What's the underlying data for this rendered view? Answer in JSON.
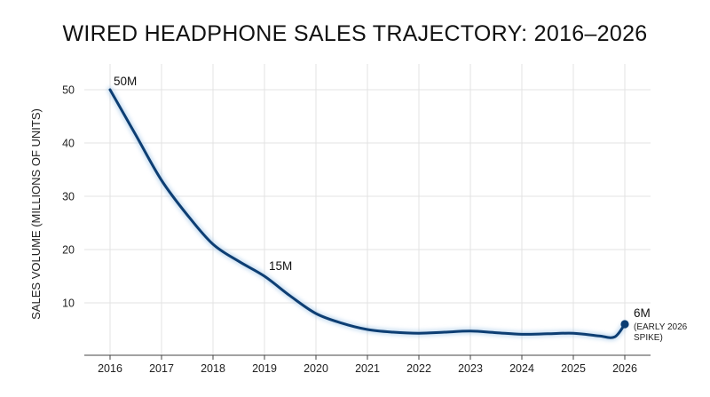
{
  "chart_data": {
    "type": "line",
    "title": "WIRED HEADPHONE SALES TRAJECTORY: 2016–2026",
    "xlabel": "",
    "ylabel": "SALES VOLUME (MILLIONS OF UNITS)",
    "xlim": [
      2016,
      2026
    ],
    "ylim": [
      0,
      50
    ],
    "x_ticks": [
      "2016",
      "2017",
      "2018",
      "2019",
      "2020",
      "2021",
      "2022",
      "2023",
      "2024",
      "2025",
      "2026"
    ],
    "y_ticks": [
      "10",
      "20",
      "30",
      "40",
      "50"
    ],
    "grid": true,
    "line_color": "#0d3e73",
    "series": [
      {
        "x": [
          2016,
          2016.5,
          2017,
          2017.5,
          2018,
          2018.5,
          2019,
          2019.5,
          2020,
          2020.5,
          2021,
          2021.5,
          2022,
          2022.5,
          2023,
          2023.5,
          2024,
          2024.5,
          2025,
          2025.5,
          2025.8,
          2026
        ],
        "values": [
          50,
          41.5,
          33,
          26.5,
          21,
          17.8,
          15,
          11.3,
          8,
          6.2,
          5,
          4.5,
          4.3,
          4.5,
          4.7,
          4.4,
          4.1,
          4.2,
          4.3,
          3.8,
          3.6,
          6
        ]
      }
    ],
    "annotations": [
      {
        "x": 2016,
        "y": 50,
        "text": "50M"
      },
      {
        "x": 2019,
        "y": 15,
        "text": "15M"
      },
      {
        "x": 2026,
        "y": 6,
        "text": "6M",
        "subtext_lines": [
          "(EARLY 2026",
          "SPIKE)"
        ]
      }
    ]
  }
}
